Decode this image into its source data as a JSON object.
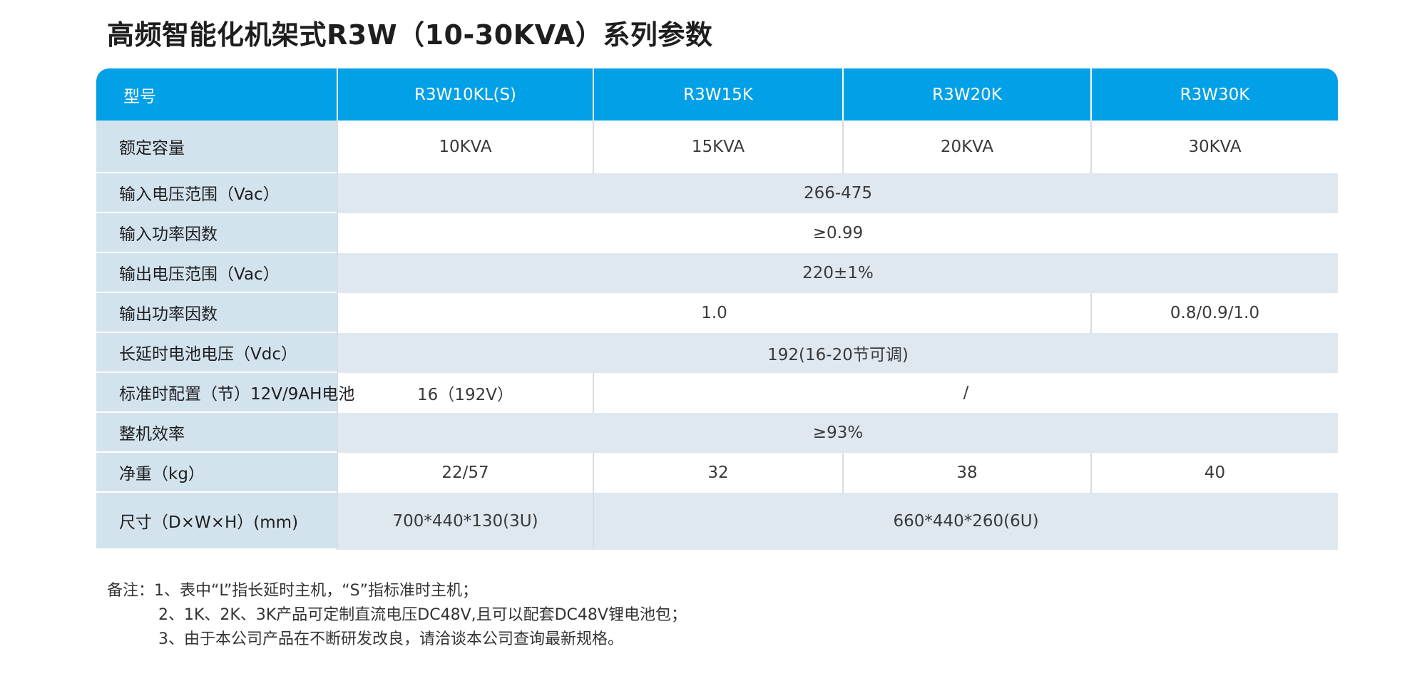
{
  "title": "高频智能化机架式R3W（10-30KVA）系列参数",
  "table": {
    "header": {
      "label": "型号",
      "models": [
        "R3W10KL(S)",
        "R3W15K",
        "R3W20K",
        "R3W30K"
      ]
    },
    "rows": {
      "rated_capacity": {
        "label": "额定容量",
        "values": [
          "10KVA",
          "15KVA",
          "20KVA",
          "30KVA"
        ]
      },
      "input_voltage": {
        "label": "输入电压范围（Vac）",
        "value": "266-475"
      },
      "input_pf": {
        "label": "输入功率因数",
        "value": "≥0.99"
      },
      "output_voltage": {
        "label": "输出电压范围（Vac）",
        "value": "220±1%"
      },
      "output_pf": {
        "label": "输出功率因数",
        "value_a": "1.0",
        "value_b": "0.8/0.9/1.0"
      },
      "long_battery_voltage": {
        "label": "长延时电池电压（Vdc）",
        "value": "192(16-20节可调)"
      },
      "standard_battery": {
        "label": "标准时配置（节）12V/9AH电池",
        "value_a": "16（192V）",
        "value_b": "/"
      },
      "efficiency": {
        "label": "整机效率",
        "value": "≥93%"
      },
      "net_weight": {
        "label": "净重（kg）",
        "values": [
          "22/57",
          "32",
          "38",
          "40"
        ]
      },
      "dimensions": {
        "label": "尺寸（D×W×H）(mm)",
        "value_a": "700*440*130(3U)",
        "value_b": "660*440*260(6U)"
      }
    }
  },
  "notes": {
    "line1": "备注：1、表中“L”指长延时主机，“S”指标准时主机；",
    "line2": "2、1K、2K、3K产品可定制直流电压DC48V,且可以配套DC48V锂电池包；",
    "line3": "3、由于本公司产品在不断研发改良，请洽谈本公司查询最新规格。"
  }
}
